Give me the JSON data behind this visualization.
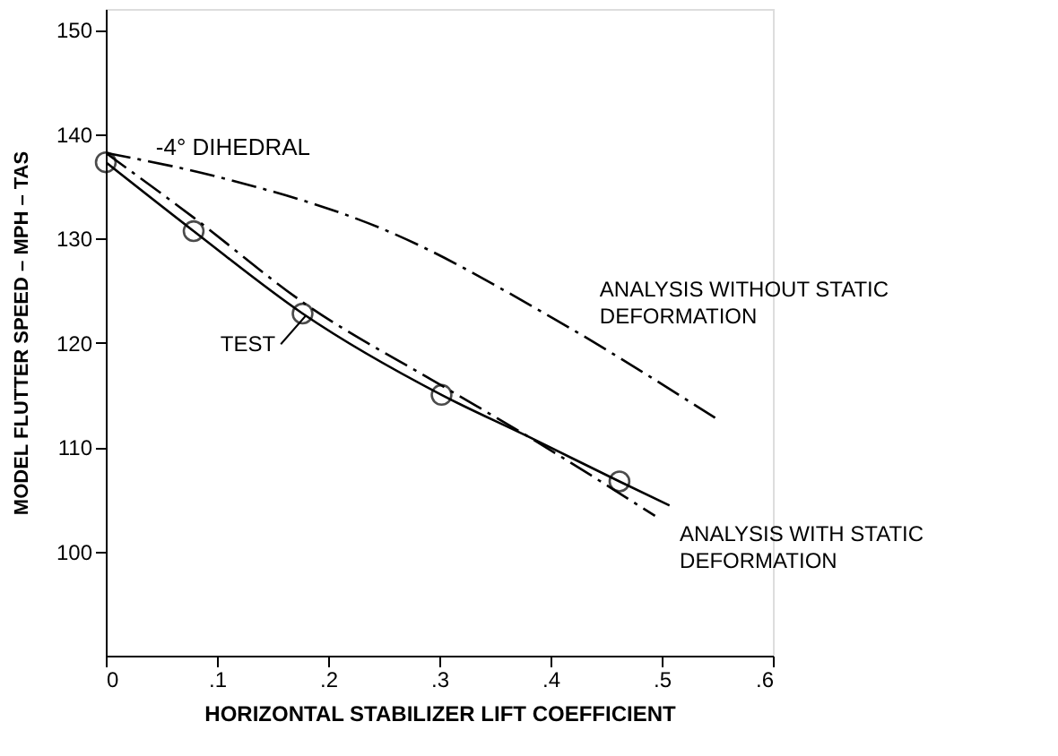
{
  "chart_data": {
    "type": "line",
    "xlabel": "HORIZONTAL STABILIZER LIFT COEFFICIENT",
    "ylabel": "MODEL FLUTTER SPEED – MPH – TAS",
    "xlim": [
      0,
      0.6
    ],
    "xticks": [
      {
        "value": 0,
        "label": "0"
      },
      {
        "value": 0.1,
        "label": ".1"
      },
      {
        "value": 0.2,
        "label": ".2"
      },
      {
        "value": 0.3,
        "label": ".3"
      },
      {
        "value": 0.4,
        "label": ".4"
      },
      {
        "value": 0.5,
        "label": ".5"
      },
      {
        "value": 0.6,
        "label": ".6"
      }
    ],
    "ylim": [
      90,
      152
    ],
    "yticks": [
      100,
      110,
      120,
      130,
      140,
      150
    ],
    "grid": false,
    "annotations": [
      "-4° DIHEDRAL"
    ],
    "series": [
      {
        "name": "TEST",
        "color": "#000000",
        "line_style": "solid",
        "marker": "none",
        "x": [
          0,
          0.079,
          0.177,
          0.302,
          0.38,
          0.462,
          0.507
        ],
        "values": [
          137.3,
          130.7,
          122.8,
          115.0,
          111.0,
          106.7,
          104.4
        ]
      },
      {
        "type": "scatter",
        "color": "#000000",
        "marker": "circle",
        "x": [
          0,
          0.079,
          0.177,
          0.302,
          0.462
        ],
        "values": [
          137.3,
          130.7,
          122.8,
          115.0,
          106.7
        ]
      },
      {
        "name": "ANALYSIS WITHOUT STATIC DEFORMATION",
        "color": "#000000",
        "line_style": "dashed",
        "marker": "none",
        "x": [
          0,
          0.097,
          0.258,
          0.403,
          0.548
        ],
        "values": [
          138.2,
          136.0,
          130.5,
          122.3,
          112.8
        ]
      },
      {
        "name": "ANALYSIS WITH STATIC DEFORMATION",
        "color": "#000000",
        "line_style": "dashed",
        "marker": "none",
        "x": [
          0,
          0.079,
          0.177,
          0.302,
          0.38,
          0.494
        ],
        "values": [
          138.2,
          132.0,
          123.9,
          115.9,
          111.0,
          103.4
        ]
      }
    ]
  }
}
